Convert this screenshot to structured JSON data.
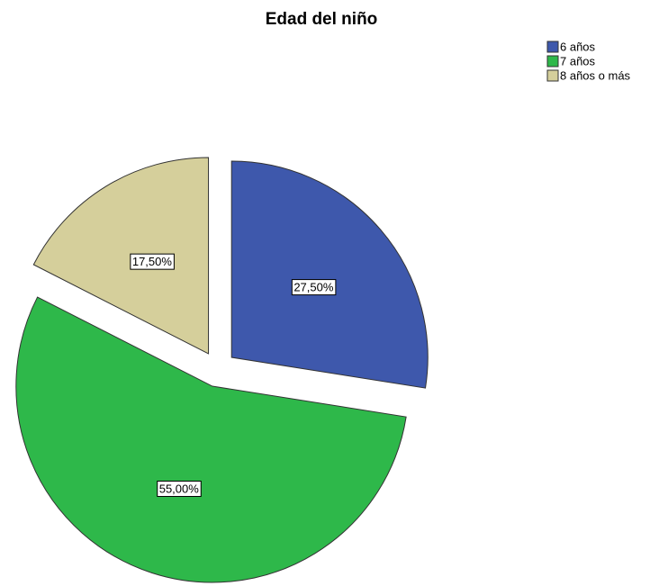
{
  "chart_data": {
    "type": "pie",
    "title": "Edad del niño",
    "categories": [
      "6 años",
      "7 años",
      "8 años o más"
    ],
    "values": [
      27.5,
      55,
      17.5
    ],
    "value_labels": [
      "27,50%",
      "55,00%",
      "17,50%"
    ],
    "colors": [
      "#3e58ac",
      "#2eb84a",
      "#d5cf9b"
    ],
    "legend": "top-right"
  }
}
